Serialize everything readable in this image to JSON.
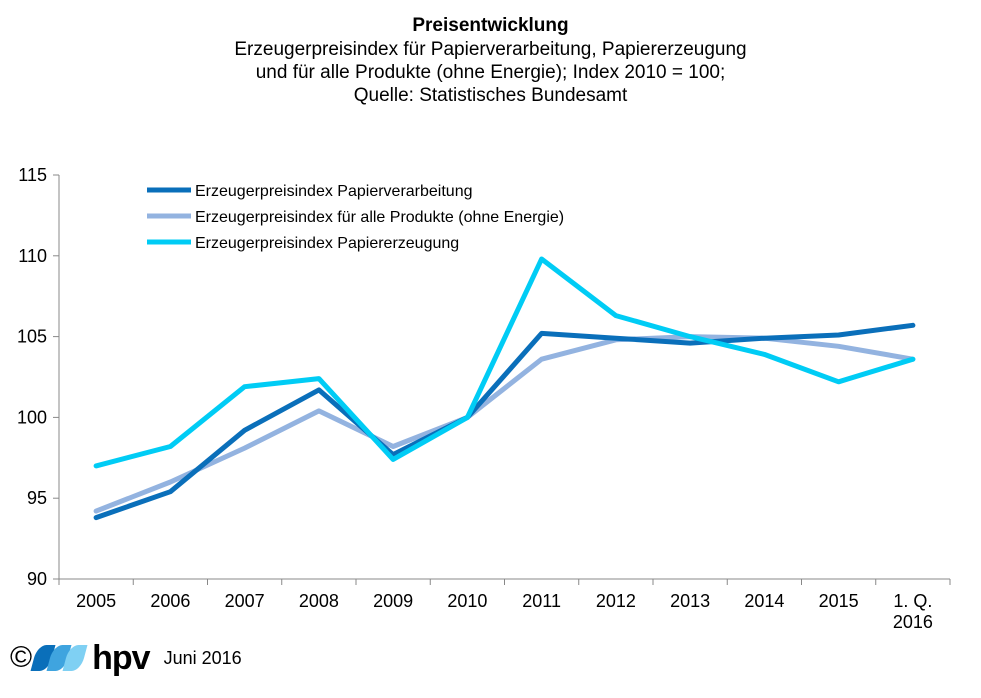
{
  "chart_data": {
    "type": "line",
    "title": "Preisentwicklung",
    "subtitle_lines": [
      "Erzeugerpreisindex für Papierverarbeitung, Papiererzeugung",
      "und für alle Produkte (ohne Energie); Index 2010 = 100;",
      "Quelle: Statistisches Bundesamt"
    ],
    "categories": [
      "2005",
      "2006",
      "2007",
      "2008",
      "2009",
      "2010",
      "2011",
      "2012",
      "2013",
      "2014",
      "2015",
      "1. Q. 2016"
    ],
    "category_labels": [
      [
        "2005"
      ],
      [
        "2006"
      ],
      [
        "2007"
      ],
      [
        "2008"
      ],
      [
        "2009"
      ],
      [
        "2010"
      ],
      [
        "2011"
      ],
      [
        "2012"
      ],
      [
        "2013"
      ],
      [
        "2014"
      ],
      [
        "2015"
      ],
      [
        "1. Q.",
        "2016"
      ]
    ],
    "ylim": [
      90,
      115
    ],
    "yticks": [
      90,
      95,
      100,
      105,
      110,
      115
    ],
    "grid": false,
    "legend_position": "top-left",
    "series": [
      {
        "name": "Erzeugerpreisindex Papierverarbeitung",
        "color": "#0a6fba",
        "values": [
          93.8,
          95.4,
          99.2,
          101.7,
          97.7,
          100.0,
          105.2,
          104.9,
          104.6,
          104.9,
          105.1,
          105.7
        ]
      },
      {
        "name": "Erzeugerpreisindex für alle Produkte (ohne Energie)",
        "color": "#93b3e0",
        "values": [
          94.2,
          96.0,
          98.1,
          100.4,
          98.2,
          100.0,
          103.6,
          104.8,
          105.0,
          104.9,
          104.4,
          103.6
        ]
      },
      {
        "name": "Erzeugerpreisindex Papiererzeugung",
        "color": "#00ccf5",
        "values": [
          97.0,
          98.2,
          101.9,
          102.4,
          97.4,
          100.0,
          109.8,
          106.3,
          105.0,
          103.9,
          102.2,
          103.6
        ]
      }
    ]
  },
  "footer": {
    "copyright_symbol": "©",
    "logo_text": "hpv",
    "date_text": "Juni 2016",
    "logo_colors": [
      "#0a6fba",
      "#3fa4df",
      "#7fd0f3"
    ]
  }
}
